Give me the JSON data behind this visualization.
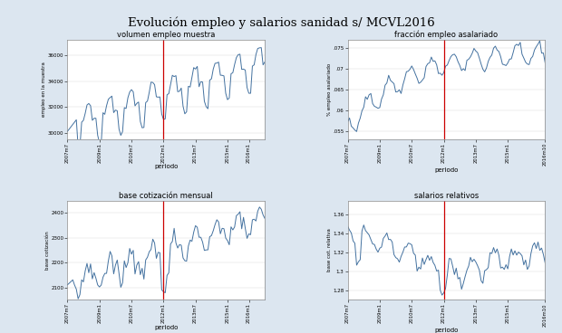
{
  "title": "Evolución empleo y salarios sanidad s/ MCVL2016",
  "background_color": "#dce6f0",
  "plot_bg_color": "#ffffff",
  "line_color": "#4472a0",
  "vline_color": "#cc0000",
  "vline_x": 54,
  "subplot1": {
    "title": "volumen empleo muestra",
    "ylabel": "empleo en la muestra",
    "xlabel": "periodo",
    "yticks": [
      30000,
      32000,
      34000,
      36000
    ],
    "ytick_labels": [
      "30000",
      "32000",
      "34000",
      "36000"
    ],
    "xtick_labels": [
      "2007m7",
      "2009m1",
      "2010m7",
      "2012m1",
      "2013m7",
      "2015m1",
      "2016m1"
    ],
    "ylim": [
      29500,
      37200
    ]
  },
  "subplot2": {
    "title": "fracción empleo asalariado",
    "ylabel": "% empleo asalariado",
    "xlabel": "periodo",
    "yticks": [
      0.055,
      0.06,
      0.065,
      0.07,
      0.075
    ],
    "ytick_labels": [
      ".055",
      ".06",
      ".065",
      ".07",
      ".075"
    ],
    "xtick_labels": [
      "2007m7",
      "2009m1",
      "2010m7",
      "2012m1",
      "2013m7",
      "2015m1",
      "2016m10"
    ],
    "ylim": [
      0.053,
      0.077
    ]
  },
  "subplot3": {
    "title": "base cotización mensual",
    "ylabel": "base cotización",
    "xlabel": "periodo",
    "yticks": [
      2100,
      2200,
      2300,
      2400
    ],
    "ytick_labels": [
      "2100",
      "2200",
      "2300",
      "2400"
    ],
    "xtick_labels": [
      "2007m7",
      "2009m1",
      "2010m7",
      "2012m1",
      "2013m7",
      "2015m1",
      "2016m1"
    ],
    "ylim": [
      2050,
      2450
    ]
  },
  "subplot4": {
    "title": "salarios relativos",
    "ylabel": "base cot. relativa",
    "xlabel": "periodo",
    "yticks": [
      1.28,
      1.3,
      1.32,
      1.34,
      1.36
    ],
    "ytick_labels": [
      "1.28",
      "1.3",
      "1.32",
      "1.34",
      "1.36"
    ],
    "xtick_labels": [
      "2007m7",
      "2009m1",
      "2010m7",
      "2012m1",
      "2013m7",
      "2015m1",
      "2016m10"
    ],
    "ylim": [
      1.27,
      1.375
    ]
  }
}
